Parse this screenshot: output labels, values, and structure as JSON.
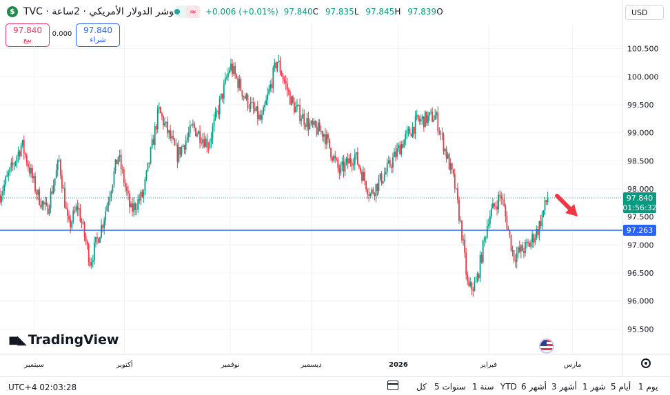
{
  "header": {
    "logo": "$",
    "title": "موشر الدولار الأمريكي · 2ساعة · TVC",
    "wave_icon": "≈",
    "ohlc": {
      "change": "+0.006 (+0.01%)",
      "o": "97.839",
      "h": "97.845",
      "l": "97.835",
      "c": "97.840"
    }
  },
  "trade": {
    "sell_price": "97.840",
    "sell_label": "بيع",
    "spread": "0.000",
    "buy_price": "97.840",
    "buy_label": "شراء"
  },
  "currency": "USD",
  "brand": "TradingView",
  "footer": {
    "clock": "UTC+4 02:03:28",
    "ranges": [
      "يوم 1",
      "أيام 5",
      "شهر 1",
      "أشهر 3",
      "أشهر 6",
      "YTD",
      "سنة 1",
      "سنوات 5",
      "كل"
    ]
  },
  "chart_data": {
    "type": "candlestick",
    "x_labels": [
      "سبتمبر",
      "أكتوبر",
      "نوفمبر",
      "ديسمبر",
      "2026",
      "فبراير",
      "مارس"
    ],
    "y_ticks": [
      "100.500",
      "100.000",
      "99.500",
      "99.000",
      "98.500",
      "98.000",
      "97.500",
      "97.000",
      "96.500",
      "96.000",
      "95.500"
    ],
    "y_tick_values": [
      100.5,
      100.0,
      99.5,
      99.0,
      98.5,
      98.0,
      97.5,
      97.0,
      96.5,
      96.0,
      95.5
    ],
    "ylim": [
      95.05,
      100.95
    ],
    "path": [
      {
        "t": 0.0,
        "v": 97.9
      },
      {
        "t": 0.02,
        "v": 98.4
      },
      {
        "t": 0.035,
        "v": 98.8
      },
      {
        "t": 0.06,
        "v": 97.9
      },
      {
        "t": 0.075,
        "v": 97.6
      },
      {
        "t": 0.095,
        "v": 98.5
      },
      {
        "t": 0.11,
        "v": 97.3
      },
      {
        "t": 0.125,
        "v": 97.7
      },
      {
        "t": 0.145,
        "v": 96.7
      },
      {
        "t": 0.165,
        "v": 97.4
      },
      {
        "t": 0.19,
        "v": 98.6
      },
      {
        "t": 0.21,
        "v": 97.6
      },
      {
        "t": 0.23,
        "v": 97.9
      },
      {
        "t": 0.255,
        "v": 99.4
      },
      {
        "t": 0.285,
        "v": 98.6
      },
      {
        "t": 0.31,
        "v": 99.1
      },
      {
        "t": 0.335,
        "v": 98.8
      },
      {
        "t": 0.37,
        "v": 100.2
      },
      {
        "t": 0.395,
        "v": 99.6
      },
      {
        "t": 0.42,
        "v": 99.2
      },
      {
        "t": 0.445,
        "v": 100.3
      },
      {
        "t": 0.47,
        "v": 99.5
      },
      {
        "t": 0.5,
        "v": 99.1
      },
      {
        "t": 0.52,
        "v": 99.0
      },
      {
        "t": 0.545,
        "v": 98.3
      },
      {
        "t": 0.57,
        "v": 98.6
      },
      {
        "t": 0.595,
        "v": 97.9
      },
      {
        "t": 0.62,
        "v": 98.3
      },
      {
        "t": 0.645,
        "v": 98.8
      },
      {
        "t": 0.67,
        "v": 99.2
      },
      {
        "t": 0.7,
        "v": 99.3
      },
      {
        "t": 0.715,
        "v": 98.7
      },
      {
        "t": 0.73,
        "v": 98.1
      },
      {
        "t": 0.742,
        "v": 97.2
      },
      {
        "t": 0.752,
        "v": 96.2
      },
      {
        "t": 0.765,
        "v": 96.3
      },
      {
        "t": 0.785,
        "v": 97.5
      },
      {
        "t": 0.805,
        "v": 97.9
      },
      {
        "t": 0.825,
        "v": 96.8
      },
      {
        "t": 0.85,
        "v": 97.0
      },
      {
        "t": 0.865,
        "v": 97.3
      },
      {
        "t": 0.88,
        "v": 97.85
      }
    ],
    "horizontal_line": 97.263,
    "horizontal_line_label": "97.263",
    "last_price": 97.84,
    "last_price_label": "97.840",
    "countdown": "01:56:32",
    "colors": {
      "up": "#089981",
      "down": "#f23645",
      "hline": "#2962ff",
      "last": "#089981",
      "arrow": "#f23645"
    }
  }
}
